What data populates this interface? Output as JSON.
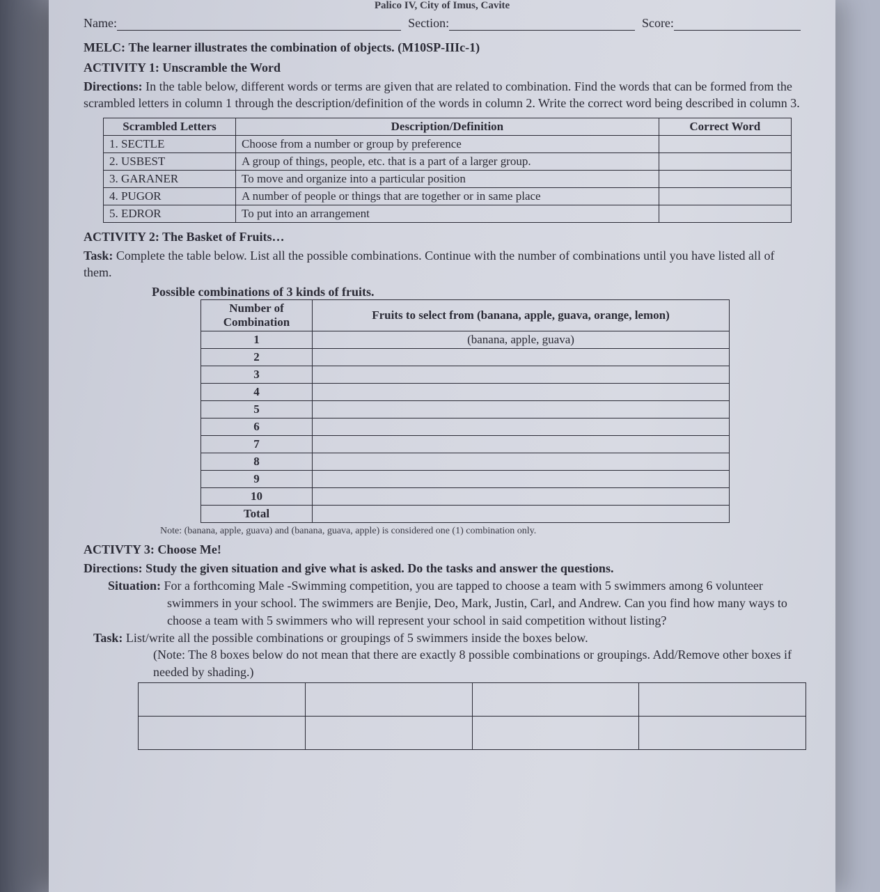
{
  "header": {
    "locality": "Palico IV, City of Imus, Cavite"
  },
  "toprow": {
    "name_label": "Name:",
    "section_label": "Section:",
    "score_label": "Score:"
  },
  "melc": {
    "prefix": "MELC:",
    "text": "The learner illustrates the combination of objects. (M10SP-IIIc-1)"
  },
  "activity1": {
    "title": "ACTIVITY 1: Unscramble the Word",
    "directions_lead": "Directions:",
    "directions_text": "In the table below, different words or terms are given that are related to combination. Find the words that can be formed from the scrambled letters in column 1 through the description/definition of the words in column 2. Write the correct word being described in column 3.",
    "table": {
      "headers": {
        "c1": "Scrambled Letters",
        "c2": "Description/Definition",
        "c3": "Correct Word"
      },
      "rows": [
        {
          "n": "1. SECTLE",
          "d": "Choose from a number or group by preference",
          "w": ""
        },
        {
          "n": "2. USBEST",
          "d": "A group of things, people, etc. that is a part of a larger group.",
          "w": ""
        },
        {
          "n": "3. GARANER",
          "d": "To move and organize into a particular position",
          "w": ""
        },
        {
          "n": "4. PUGOR",
          "d": "A number of people or things that are together or in same place",
          "w": ""
        },
        {
          "n": "5. EDROR",
          "d": "To put into an arrangement",
          "w": ""
        }
      ]
    }
  },
  "activity2": {
    "title": "ACTIVITY 2: The Basket of Fruits…",
    "task_lead": "Task:",
    "task_text": "Complete the table below. List all the possible combinations. Continue with the number of combinations until you have listed all of them.",
    "subhead": "Possible combinations of 3 kinds of fruits.",
    "table": {
      "h1": "Number of Combination",
      "h2": "Fruits to select from (banana, apple, guava, orange, lemon)",
      "rows": [
        {
          "n": "1",
          "f": "(banana, apple, guava)"
        },
        {
          "n": "2",
          "f": ""
        },
        {
          "n": "3",
          "f": ""
        },
        {
          "n": "4",
          "f": ""
        },
        {
          "n": "5",
          "f": ""
        },
        {
          "n": "6",
          "f": ""
        },
        {
          "n": "7",
          "f": ""
        },
        {
          "n": "8",
          "f": ""
        },
        {
          "n": "9",
          "f": ""
        },
        {
          "n": "10",
          "f": ""
        }
      ],
      "total_label": "Total"
    },
    "note": "Note: (banana, apple, guava) and (banana, guava, apple) is considered one (1) combination only."
  },
  "activity3": {
    "title": "ACTIVTY 3: Choose Me!",
    "directions_lead": "Directions:",
    "directions_text": "Study the given situation and give what is asked. Do the tasks and answer the questions.",
    "situation_lead": "Situation:",
    "situation_text1": "For a forthcoming Male -Swimming competition, you are tapped to choose a team with 5 swimmers among 6 volunteer swimmers in your school. The swimmers are Benjie, Deo, Mark, Justin, Carl, and Andrew. Can you find how many ways to choose a team with 5 swimmers who will represent your school in said competition without listing?",
    "task_lead": "Task:",
    "task_text": "List/write all the possible combinations or groupings of 5 swimmers inside the boxes below.",
    "note_text": "(Note: The 8 boxes below do not mean that there are exactly 8 possible combinations or groupings. Add/Remove other boxes if needed by shading.)",
    "box_rows": 2,
    "box_cols": 4
  },
  "colors": {
    "text": "#2a2a35",
    "page_bg_from": "#c7cad6",
    "page_bg_to": "#cfd2dc",
    "border": "#2a2a35"
  }
}
